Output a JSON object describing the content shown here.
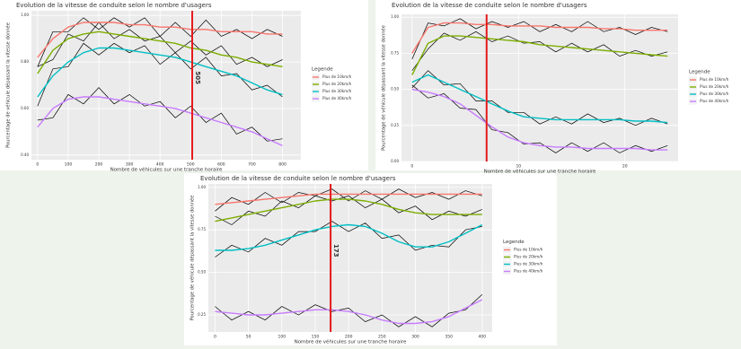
{
  "chart_data": [
    {
      "type": "line",
      "title": "Evolution de la vitesse de conduite selon le nombre d'usagers",
      "x_label": "Nombre de véhicules sur une tranche horaire",
      "y_label": "Pourcentage de véhicule dépassant la vitesse donnée",
      "legend_title": "Legende",
      "legend": "right",
      "grid": true,
      "xlim": [
        -20,
        860
      ],
      "xticks": [
        0,
        100,
        200,
        300,
        400,
        500,
        600,
        700,
        800
      ],
      "ylim": [
        0.38,
        1.02
      ],
      "yticks": [
        {
          "value": 0.4,
          "label": "0.40"
        },
        {
          "value": 0.6,
          "label": "0.60"
        },
        {
          "value": 0.8,
          "label": "0.80"
        },
        {
          "value": 1,
          "label": "1.00"
        }
      ],
      "vline": 505,
      "vline_color": "#e41a1c",
      "show_vline_label": true,
      "x": [
        0,
        50,
        100,
        150,
        200,
        250,
        300,
        350,
        400,
        450,
        500,
        550,
        600,
        650,
        700,
        750,
        800
      ],
      "series": [
        {
          "name": "Plus de 10km/h",
          "color": "#f8766d",
          "values": [
            0.82,
            0.9,
            0.95,
            0.97,
            0.97,
            0.97,
            0.96,
            0.96,
            0.95,
            0.95,
            0.94,
            0.94,
            0.93,
            0.93,
            0.93,
            0.92,
            0.92
          ]
        },
        {
          "name": "Plus de 20km/h",
          "color": "#7cae00",
          "values": [
            0.75,
            0.85,
            0.9,
            0.92,
            0.93,
            0.92,
            0.91,
            0.9,
            0.89,
            0.88,
            0.86,
            0.85,
            0.83,
            0.82,
            0.8,
            0.79,
            0.78
          ]
        },
        {
          "name": "Plus de 30km/h",
          "color": "#00bfc4",
          "values": [
            0.65,
            0.74,
            0.8,
            0.84,
            0.86,
            0.86,
            0.85,
            0.84,
            0.83,
            0.82,
            0.8,
            0.78,
            0.76,
            0.74,
            0.71,
            0.68,
            0.66
          ]
        },
        {
          "name": "Plus de 40km/h",
          "color": "#c77cff",
          "values": [
            0.52,
            0.6,
            0.64,
            0.65,
            0.65,
            0.64,
            0.63,
            0.62,
            0.61,
            0.6,
            0.58,
            0.56,
            0.54,
            0.52,
            0.5,
            0.47,
            0.44
          ]
        }
      ],
      "raw_color": "#000000",
      "raw_series": [
        {
          "values": [
            0.78,
            0.93,
            0.93,
            0.99,
            0.94,
            0.99,
            0.95,
            0.99,
            0.91,
            0.97,
            0.91,
            0.98,
            0.91,
            0.94,
            0.9,
            0.94,
            0.91
          ]
        },
        {
          "values": [
            0.78,
            0.81,
            0.92,
            0.89,
            0.97,
            0.9,
            0.94,
            0.89,
            0.91,
            0.84,
            0.89,
            0.83,
            0.87,
            0.79,
            0.82,
            0.78,
            0.81
          ]
        },
        {
          "values": [
            0.61,
            0.77,
            0.78,
            0.88,
            0.83,
            0.88,
            0.84,
            0.87,
            0.79,
            0.84,
            0.77,
            0.82,
            0.74,
            0.75,
            0.68,
            0.7,
            0.65
          ]
        },
        {
          "values": [
            0.55,
            0.56,
            0.66,
            0.62,
            0.69,
            0.62,
            0.66,
            0.61,
            0.63,
            0.56,
            0.61,
            0.54,
            0.58,
            0.49,
            0.52,
            0.46,
            0.47
          ]
        }
      ]
    },
    {
      "type": "line",
      "title": "Evolution de la vitesse de conduite selon le nombre d'usagers",
      "x_label": "Nombre de véhicules sur une tranche horaire",
      "y_label": "Pourcentage de véhicule dépassant la vitesse donnée",
      "legend_title": "Legende",
      "legend": "right",
      "grid": true,
      "xlim": [
        -1,
        25
      ],
      "xticks": [
        0,
        10,
        20
      ],
      "ylim": [
        0,
        1.02
      ],
      "yticks": [
        {
          "value": 0,
          "label": "0.00"
        },
        0.25,
        {
          "value": 0.5,
          "label": "0.50"
        },
        0.75,
        {
          "value": 1,
          "label": "1.00"
        }
      ],
      "vline": 7,
      "vline_color": "#e41a1c",
      "show_vline_label": false,
      "x": [
        0,
        1.5,
        3,
        4.5,
        6,
        7.5,
        9,
        10.5,
        12,
        13.5,
        15,
        16.5,
        18,
        19.5,
        21,
        22.5,
        24
      ],
      "series": [
        {
          "name": "Plus de 10km/h",
          "color": "#f8766d",
          "values": [
            0.75,
            0.93,
            0.96,
            0.96,
            0.95,
            0.95,
            0.94,
            0.94,
            0.94,
            0.93,
            0.93,
            0.93,
            0.92,
            0.92,
            0.91,
            0.91,
            0.91
          ]
        },
        {
          "name": "Plus de 20km/h",
          "color": "#7cae00",
          "values": [
            0.6,
            0.82,
            0.87,
            0.87,
            0.86,
            0.85,
            0.84,
            0.83,
            0.81,
            0.8,
            0.79,
            0.78,
            0.77,
            0.76,
            0.75,
            0.74,
            0.73
          ]
        },
        {
          "name": "Plus de 30km/h",
          "color": "#00bfc4",
          "values": [
            0.55,
            0.6,
            0.55,
            0.5,
            0.45,
            0.4,
            0.35,
            0.31,
            0.3,
            0.29,
            0.29,
            0.29,
            0.29,
            0.29,
            0.28,
            0.28,
            0.27
          ]
        },
        {
          "name": "Plus de 40km/h",
          "color": "#c77cff",
          "values": [
            0.5,
            0.48,
            0.45,
            0.4,
            0.32,
            0.24,
            0.17,
            0.13,
            0.11,
            0.1,
            0.1,
            0.09,
            0.09,
            0.09,
            0.09,
            0.08,
            0.08
          ]
        }
      ],
      "raw_color": "#000000",
      "raw_series": [
        {
          "values": [
            0.71,
            0.96,
            0.94,
            0.99,
            0.92,
            0.97,
            0.93,
            0.97,
            0.9,
            0.95,
            0.9,
            0.97,
            0.9,
            0.93,
            0.88,
            0.93,
            0.9
          ]
        },
        {
          "values": [
            0.63,
            0.78,
            0.89,
            0.84,
            0.9,
            0.83,
            0.87,
            0.82,
            0.83,
            0.76,
            0.82,
            0.76,
            0.81,
            0.73,
            0.77,
            0.73,
            0.76
          ]
        },
        {
          "values": [
            0.51,
            0.63,
            0.53,
            0.54,
            0.42,
            0.42,
            0.34,
            0.34,
            0.26,
            0.31,
            0.26,
            0.33,
            0.27,
            0.3,
            0.25,
            0.3,
            0.26
          ]
        },
        {
          "values": [
            0.53,
            0.44,
            0.47,
            0.37,
            0.36,
            0.22,
            0.2,
            0.12,
            0.13,
            0.06,
            0.13,
            0.07,
            0.13,
            0.06,
            0.11,
            0.07,
            0.11
          ]
        }
      ]
    },
    {
      "type": "line",
      "title": "Evolution de la vitesse de conduite selon le nombre d'usagers",
      "x_label": "Nombre de véhicules sur une tranche horaire",
      "y_label": "Pourcentage de véhicule dépassant la vitesse donnée",
      "legend_title": "Legende",
      "legend": "right",
      "grid": true,
      "xlim": [
        -10,
        415
      ],
      "xticks": [
        0,
        50,
        100,
        150,
        200,
        250,
        300,
        350,
        400
      ],
      "ylim": [
        0.15,
        1.02
      ],
      "yticks": [
        0.25,
        {
          "value": 0.5,
          "label": "0.50"
        },
        0.75,
        {
          "value": 1,
          "label": "1.00"
        }
      ],
      "vline": 173,
      "vline_color": "#e41a1c",
      "show_vline_label": true,
      "x": [
        0,
        25,
        50,
        75,
        100,
        125,
        150,
        175,
        200,
        225,
        250,
        275,
        300,
        325,
        350,
        375,
        400
      ],
      "series": [
        {
          "name": "Plus de 10km/h",
          "color": "#f8766d",
          "values": [
            0.9,
            0.91,
            0.92,
            0.93,
            0.94,
            0.95,
            0.96,
            0.96,
            0.96,
            0.96,
            0.96,
            0.96,
            0.96,
            0.96,
            0.96,
            0.96,
            0.96
          ]
        },
        {
          "name": "Plus de 20km/h",
          "color": "#7cae00",
          "values": [
            0.8,
            0.82,
            0.84,
            0.86,
            0.88,
            0.9,
            0.92,
            0.93,
            0.93,
            0.92,
            0.9,
            0.87,
            0.85,
            0.84,
            0.84,
            0.84,
            0.84
          ]
        },
        {
          "name": "Plus de 30km/h",
          "color": "#00bfc4",
          "values": [
            0.63,
            0.63,
            0.64,
            0.66,
            0.69,
            0.72,
            0.75,
            0.77,
            0.78,
            0.77,
            0.73,
            0.68,
            0.65,
            0.65,
            0.68,
            0.73,
            0.78
          ]
        },
        {
          "name": "Plus de 40km/h",
          "color": "#c77cff",
          "values": [
            0.27,
            0.26,
            0.25,
            0.25,
            0.26,
            0.27,
            0.28,
            0.28,
            0.27,
            0.25,
            0.22,
            0.2,
            0.2,
            0.21,
            0.24,
            0.29,
            0.34
          ]
        }
      ],
      "raw_color": "#000000",
      "raw_series": [
        {
          "values": [
            0.86,
            0.94,
            0.9,
            0.97,
            0.91,
            0.97,
            0.95,
            0.99,
            0.92,
            0.98,
            0.93,
            0.99,
            0.94,
            0.97,
            0.93,
            0.98,
            0.95
          ]
        },
        {
          "values": [
            0.83,
            0.78,
            0.86,
            0.83,
            0.92,
            0.88,
            0.95,
            0.92,
            0.95,
            0.88,
            0.93,
            0.85,
            0.89,
            0.81,
            0.86,
            0.83,
            0.87
          ]
        },
        {
          "values": [
            0.59,
            0.66,
            0.62,
            0.7,
            0.66,
            0.74,
            0.74,
            0.8,
            0.74,
            0.79,
            0.7,
            0.72,
            0.63,
            0.66,
            0.65,
            0.75,
            0.77
          ]
        },
        {
          "values": [
            0.3,
            0.22,
            0.27,
            0.22,
            0.3,
            0.25,
            0.31,
            0.27,
            0.29,
            0.21,
            0.25,
            0.18,
            0.24,
            0.18,
            0.26,
            0.28,
            0.37
          ]
        }
      ]
    }
  ]
}
